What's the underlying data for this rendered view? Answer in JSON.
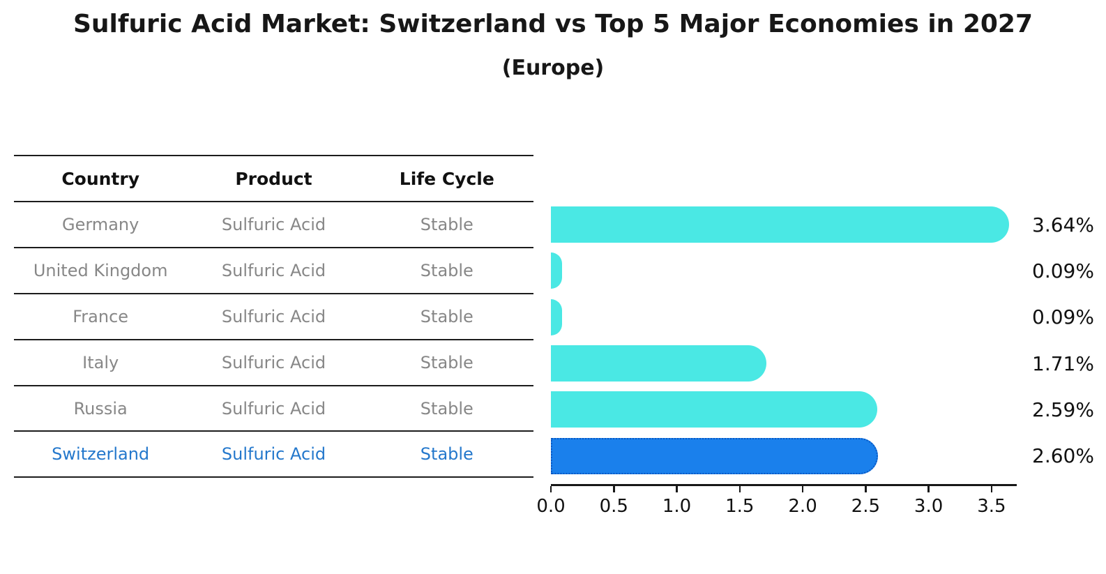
{
  "title": "Sulfuric Acid Market: Switzerland vs Top 5 Major Economies in 2027",
  "subtitle": "(Europe)",
  "table": {
    "headers": [
      "Country",
      "Product",
      "Life Cycle"
    ],
    "rows": [
      {
        "country": "Germany",
        "product": "Sulfuric Acid",
        "life_cycle": "Stable",
        "highlighted": false
      },
      {
        "country": "United Kingdom",
        "product": "Sulfuric Acid",
        "life_cycle": "Stable",
        "highlighted": false
      },
      {
        "country": "France",
        "product": "Sulfuric Acid",
        "life_cycle": "Stable",
        "highlighted": false
      },
      {
        "country": "Italy",
        "product": "Sulfuric Acid",
        "life_cycle": "Stable",
        "highlighted": false
      },
      {
        "country": "Russia",
        "product": "Sulfuric Acid",
        "life_cycle": "Stable",
        "highlighted": false
      },
      {
        "country": "Switzerland",
        "product": "Sulfuric Acid",
        "life_cycle": "Stable",
        "highlighted": true
      }
    ]
  },
  "chart_data": {
    "type": "bar",
    "orientation": "horizontal",
    "title": "Sulfuric Acid Market: Switzerland vs Top 5 Major Economies in 2027 (Europe)",
    "categories": [
      "Germany",
      "United Kingdom",
      "France",
      "Italy",
      "Russia",
      "Switzerland"
    ],
    "values": [
      3.64,
      0.09,
      0.09,
      1.71,
      2.59,
      2.6
    ],
    "value_labels": [
      "3.64%",
      "0.09%",
      "0.09%",
      "1.71%",
      "2.59%",
      "2.60%"
    ],
    "x_ticks": [
      0.0,
      0.5,
      1.0,
      1.5,
      2.0,
      2.5,
      3.0,
      3.5
    ],
    "x_tick_labels": [
      "0.0",
      "0.5",
      "1.0",
      "1.5",
      "2.0",
      "2.5",
      "3.0",
      "3.5"
    ],
    "xlim": [
      0,
      3.7
    ],
    "grid": false,
    "legend": "none",
    "highlight_index": 5,
    "bar_color": "#4ae8e4",
    "highlight_color": "#1a80ec",
    "highlight_border_color": "#0a57c2",
    "text_color": "#111111",
    "muted_text_color": "#878787",
    "highlight_text_color": "#2478cc"
  }
}
